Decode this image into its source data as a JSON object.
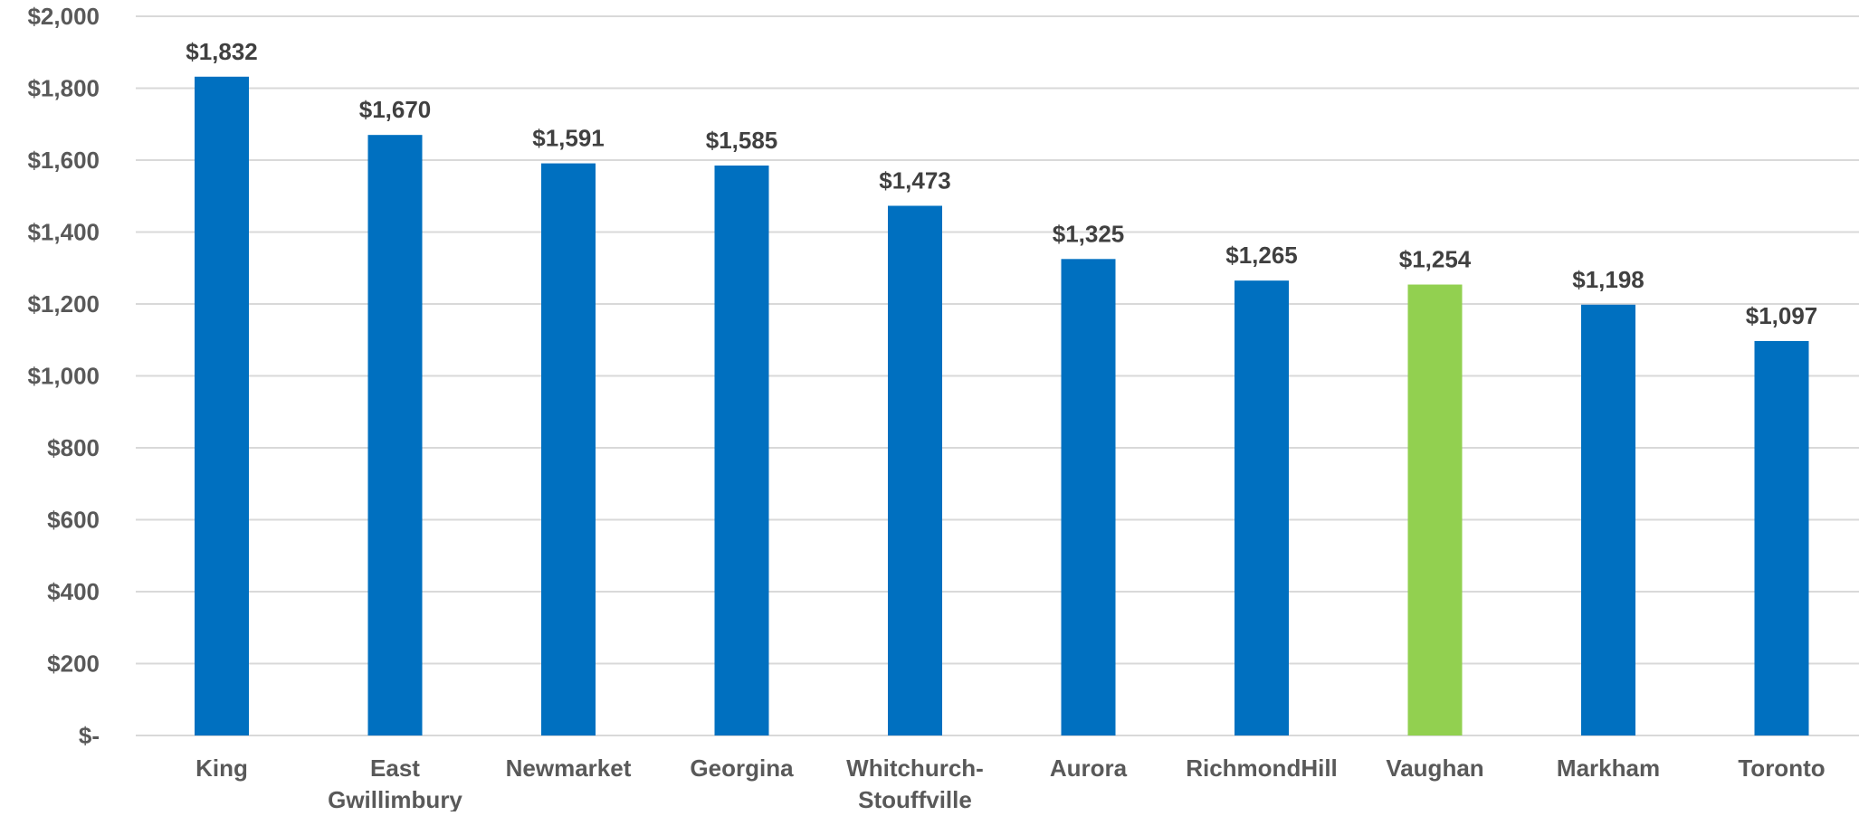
{
  "chart_data": {
    "type": "bar",
    "title": "",
    "xlabel": "",
    "ylabel": "",
    "categories": [
      [
        "King"
      ],
      [
        "East",
        "Gwillimbury"
      ],
      [
        "Newmarket"
      ],
      [
        "Georgina"
      ],
      [
        "Whitchurch-",
        "Stouffville"
      ],
      [
        "Aurora"
      ],
      [
        "RichmondHill"
      ],
      [
        "Vaughan"
      ],
      [
        "Markham"
      ],
      [
        "Toronto"
      ]
    ],
    "values": [
      1832,
      1670,
      1591,
      1585,
      1473,
      1325,
      1265,
      1254,
      1198,
      1097
    ],
    "data_labels": [
      "$1,832",
      "$1,670",
      "$1,591",
      "$1,585",
      "$1,473",
      "$1,325",
      "$1,265",
      "$1,254",
      "$1,198",
      "$1,097"
    ],
    "bar_colors": [
      "#0070C0",
      "#0070C0",
      "#0070C0",
      "#0070C0",
      "#0070C0",
      "#0070C0",
      "#0070C0",
      "#92D050",
      "#0070C0",
      "#0070C0"
    ],
    "ylim": [
      0,
      2000
    ],
    "yticks": [
      0,
      200,
      400,
      600,
      800,
      1000,
      1200,
      1400,
      1600,
      1800,
      2000
    ],
    "ytick_labels": [
      "$-",
      "$200",
      "$400",
      "$600",
      "$800",
      "$1,000",
      "$1,200",
      "$1,400",
      "$1,600",
      "$1,800",
      "$2,000"
    ],
    "grid": true,
    "legend": "none"
  }
}
